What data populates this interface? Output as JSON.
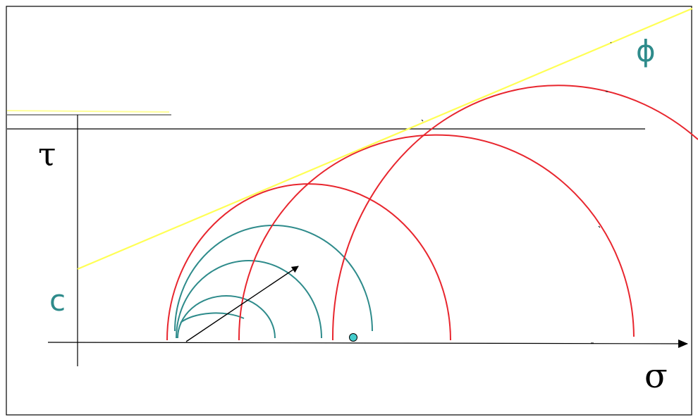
{
  "labels": {
    "tau": "τ",
    "sigma": "σ",
    "phi": "ϕ",
    "cohesion": "c"
  },
  "colors": {
    "frame": "#000000",
    "axis": "#000000",
    "envelope": "#ffff66",
    "failure_circle": "#e8262e",
    "stress_circle": "#2e8b8b",
    "point": "#44cccc",
    "teal_label": "#2e8b8b"
  },
  "icons": {
    "arrow": "arrow-head-icon",
    "point": "stress-point-icon"
  }
}
